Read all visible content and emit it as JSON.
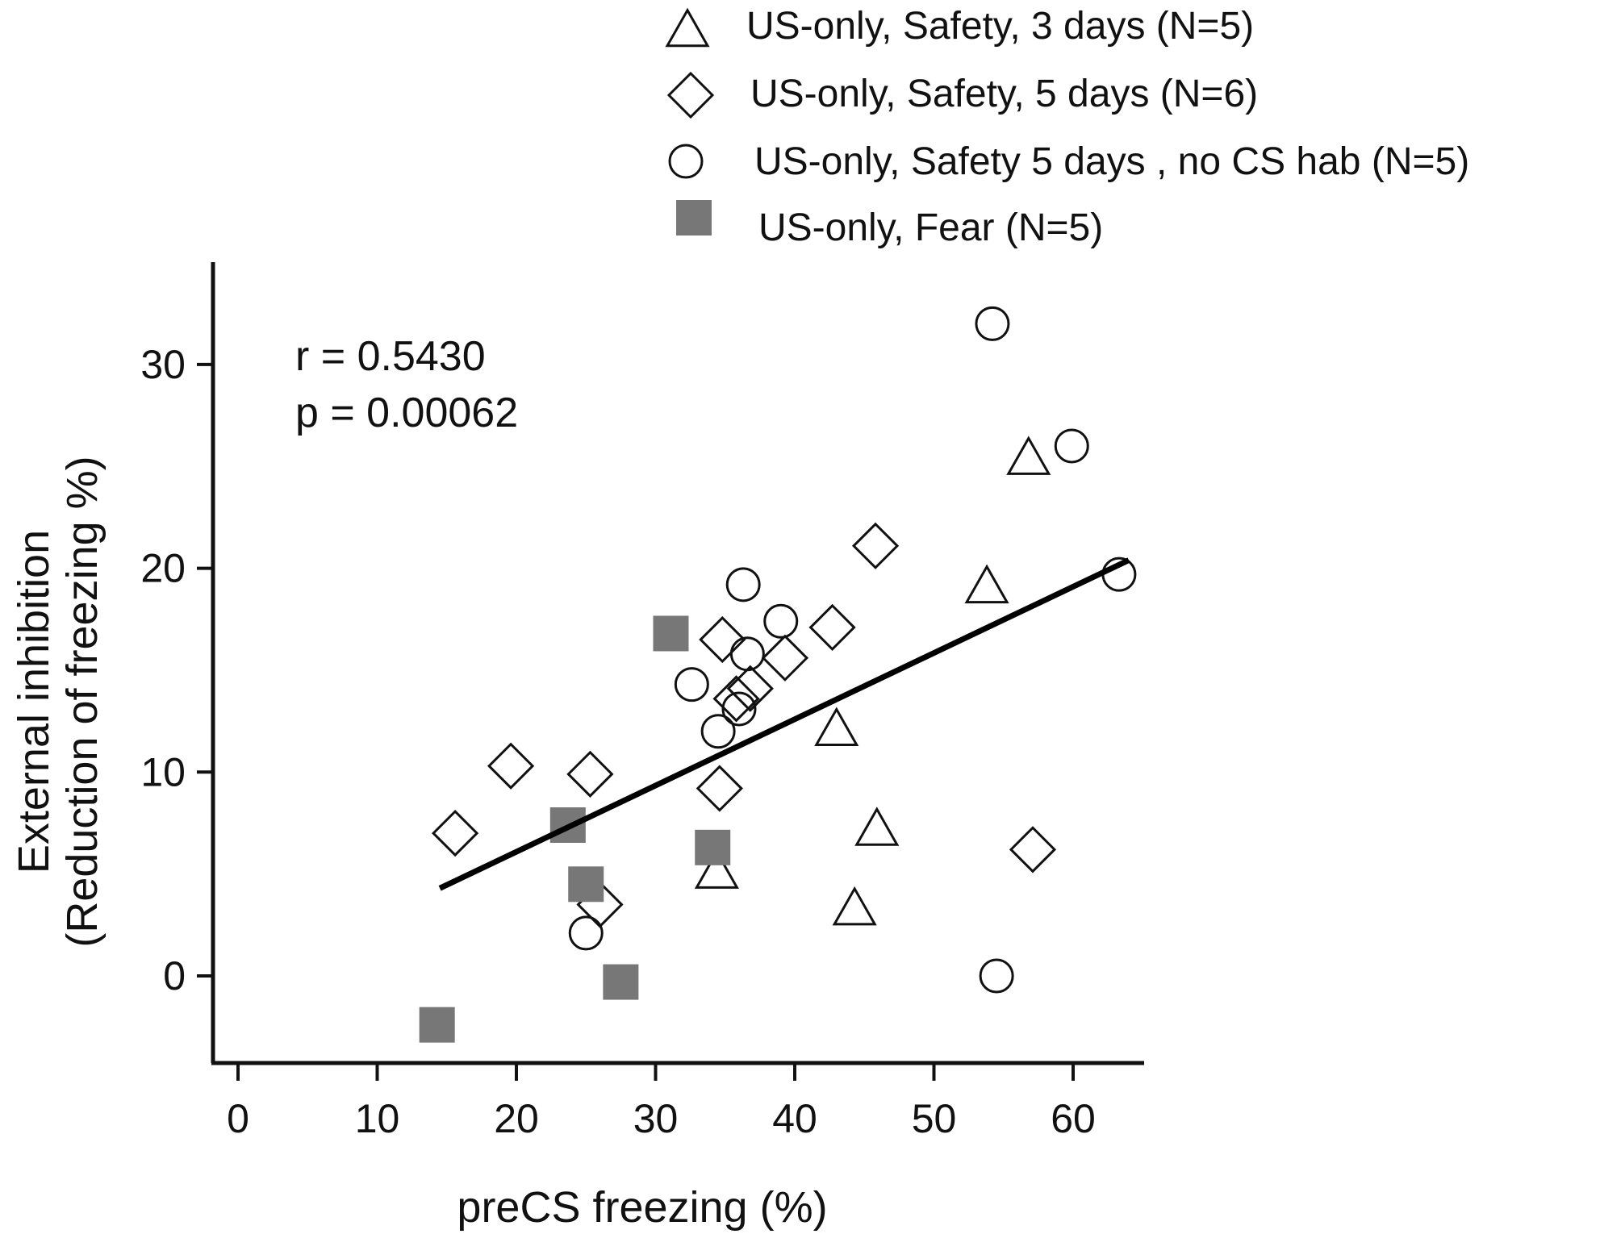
{
  "chart_data": {
    "type": "scatter",
    "title": "",
    "xlabel": "preCS freezing (%)",
    "ylabel": [
      "External inhibition",
      "(Reduction of freezing %)"
    ],
    "xlim": [
      -2,
      65
    ],
    "ylim": [
      -4.2,
      35
    ],
    "xticks": [
      0,
      10,
      20,
      30,
      40,
      50,
      60
    ],
    "yticks": [
      0,
      10,
      20,
      30
    ],
    "grid": false,
    "legend_position": "top-right",
    "annotations": {
      "r": "r = 0.5430",
      "p": "p = 0.00062"
    },
    "regression_line": {
      "x": [
        14.5,
        64
      ],
      "y": [
        4.3,
        20.4
      ]
    },
    "series": [
      {
        "name": "US-only, Safety, 3 days (N=5)",
        "marker": "triangle",
        "fill": "none",
        "points": [
          [
            34.4,
            5.0
          ],
          [
            43.0,
            12.0
          ],
          [
            45.9,
            7.1
          ],
          [
            44.3,
            3.2
          ],
          [
            53.8,
            19.0
          ],
          [
            56.8,
            25.3
          ]
        ]
      },
      {
        "name": "US-only, Safety, 5 days (N=6)",
        "marker": "diamond",
        "fill": "none",
        "points": [
          [
            15.6,
            7.0
          ],
          [
            19.6,
            10.3
          ],
          [
            25.3,
            9.9
          ],
          [
            26.0,
            3.5
          ],
          [
            34.6,
            9.2
          ],
          [
            34.8,
            16.5
          ],
          [
            35.8,
            13.6
          ],
          [
            36.8,
            14.1
          ],
          [
            39.3,
            15.6
          ],
          [
            42.7,
            17.1
          ],
          [
            45.8,
            21.1
          ],
          [
            57.1,
            6.2
          ]
        ]
      },
      {
        "name": "US-only, Safety 5 days , no CS hab (N=5)",
        "marker": "circle",
        "fill": "none",
        "points": [
          [
            25.0,
            2.1
          ],
          [
            32.6,
            14.3
          ],
          [
            34.5,
            12.0
          ],
          [
            36.0,
            13.1
          ],
          [
            36.6,
            15.8
          ],
          [
            36.3,
            19.2
          ],
          [
            39.0,
            17.4
          ],
          [
            54.2,
            32.0
          ],
          [
            54.5,
            0.0
          ],
          [
            59.9,
            26.0
          ],
          [
            63.3,
            19.7
          ]
        ]
      },
      {
        "name": "US-only, Fear (N=5)",
        "marker": "square",
        "fill": "#777777",
        "points": [
          [
            14.3,
            -2.4
          ],
          [
            23.7,
            7.4
          ],
          [
            25.0,
            4.5
          ],
          [
            27.5,
            -0.3
          ],
          [
            31.1,
            16.8
          ],
          [
            34.1,
            6.3
          ]
        ]
      }
    ]
  }
}
